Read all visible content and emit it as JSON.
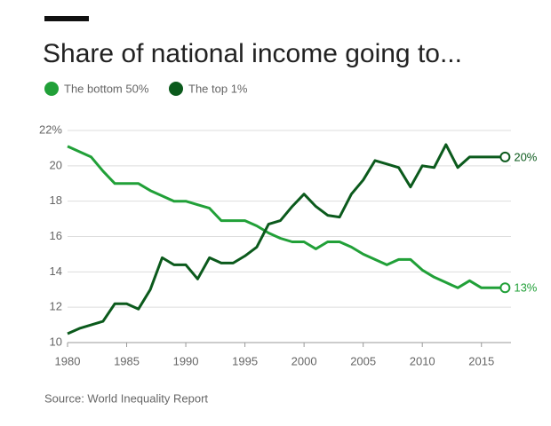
{
  "chart_data": {
    "type": "line",
    "title": "Share of national income going to...",
    "source": "Source: World Inequality Report",
    "x": [
      1980,
      1981,
      1982,
      1983,
      1984,
      1985,
      1986,
      1987,
      1988,
      1989,
      1990,
      1991,
      1992,
      1993,
      1994,
      1995,
      1996,
      1997,
      1998,
      1999,
      2000,
      2001,
      2002,
      2003,
      2004,
      2005,
      2006,
      2007,
      2008,
      2009,
      2010,
      2011,
      2012,
      2013,
      2014,
      2015,
      2016,
      2017
    ],
    "series": [
      {
        "name": "The bottom 50%",
        "color": "#21a038",
        "values": [
          21.1,
          20.8,
          20.5,
          19.7,
          19.0,
          19.0,
          19.0,
          18.6,
          18.3,
          18.0,
          18.0,
          17.8,
          17.6,
          16.9,
          16.9,
          16.9,
          16.6,
          16.2,
          15.9,
          15.7,
          15.7,
          15.3,
          15.7,
          15.7,
          15.4,
          15.0,
          14.7,
          14.4,
          14.7,
          14.7,
          14.1,
          13.7,
          13.4,
          13.1,
          13.5,
          13.1,
          13.1,
          13.1
        ],
        "value_labels": [
          null,
          null,
          null,
          null,
          null,
          null,
          null,
          null,
          null,
          null,
          null,
          null,
          null,
          null,
          null,
          null,
          null,
          null,
          null,
          null,
          null,
          null,
          null,
          null,
          null,
          null,
          null,
          null,
          null,
          null,
          null,
          null,
          null,
          null,
          null,
          null,
          null,
          "13%"
        ]
      },
      {
        "name": "The top 1%",
        "color": "#0b5a1c",
        "values": [
          10.5,
          10.8,
          11.0,
          11.2,
          12.2,
          12.2,
          11.9,
          13.0,
          14.8,
          14.4,
          14.4,
          13.6,
          14.8,
          14.5,
          14.5,
          14.9,
          15.4,
          16.7,
          16.9,
          17.7,
          18.4,
          17.7,
          17.2,
          17.1,
          18.4,
          19.2,
          20.3,
          20.1,
          19.9,
          18.8,
          20.0,
          19.9,
          21.2,
          19.9,
          20.5,
          20.5,
          20.5,
          20.5
        ],
        "value_labels": [
          null,
          null,
          null,
          null,
          null,
          null,
          null,
          null,
          null,
          null,
          null,
          null,
          null,
          null,
          null,
          null,
          null,
          null,
          null,
          null,
          null,
          null,
          null,
          null,
          null,
          null,
          null,
          null,
          null,
          null,
          null,
          null,
          null,
          null,
          null,
          null,
          null,
          "20%"
        ]
      }
    ],
    "xlim": [
      1980,
      2017.5
    ],
    "xticks": [
      1980,
      1985,
      1990,
      1995,
      2000,
      2005,
      2010,
      2015
    ],
    "ylim": [
      10,
      22
    ],
    "yticks": [
      10,
      12,
      14,
      16,
      18,
      {
        "value": 20,
        "label": "20"
      },
      {
        "value": 22,
        "label": "22%"
      }
    ],
    "grid": true
  }
}
